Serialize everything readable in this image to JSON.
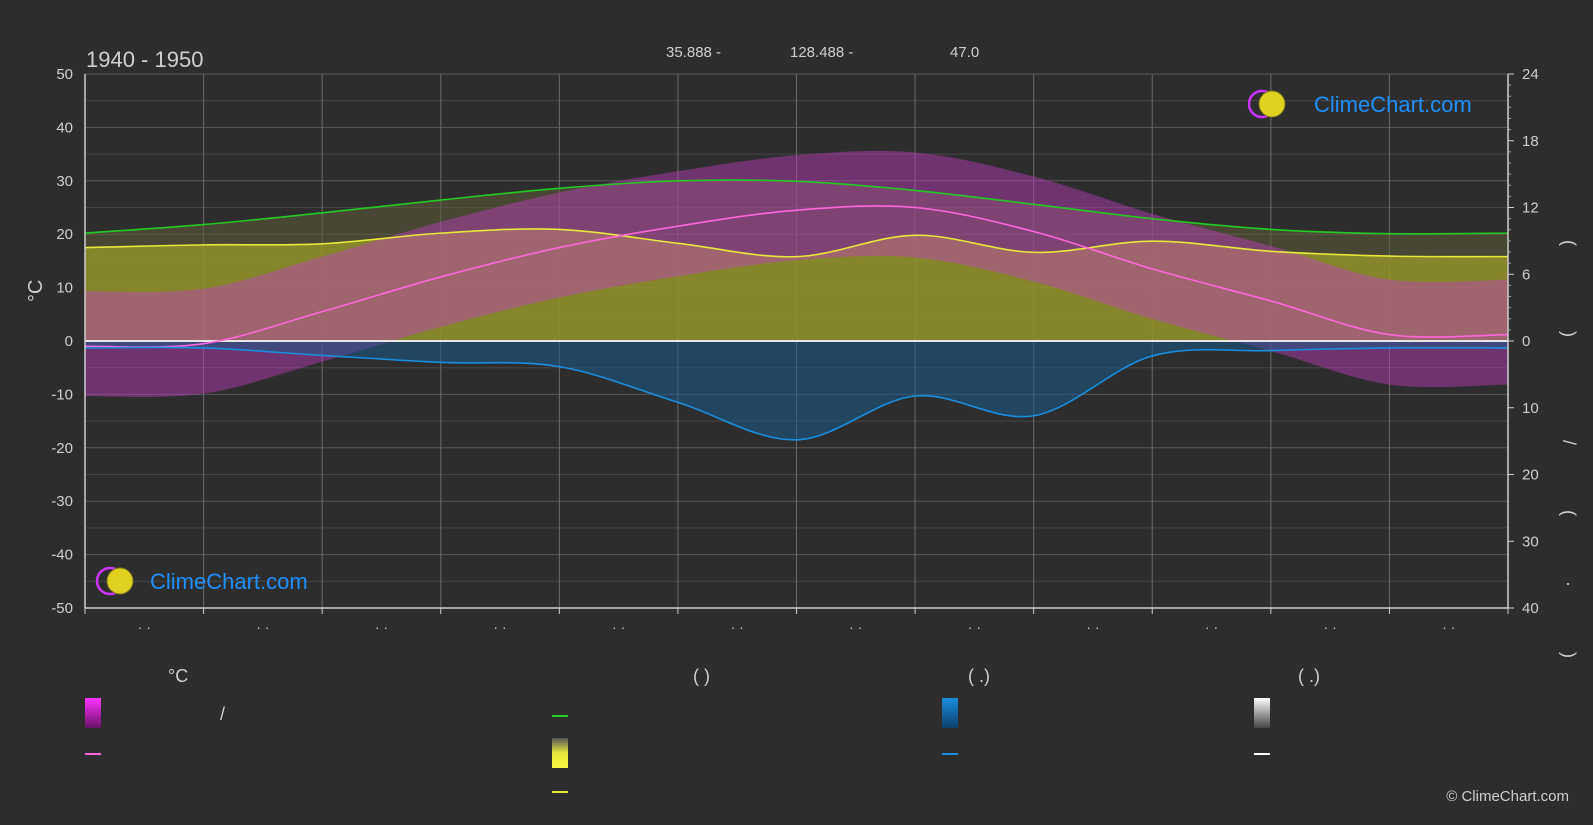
{
  "header": {
    "period": "1940 - 1950",
    "lat": "35.888 -",
    "lon": "128.488 -",
    "elev": "47.0"
  },
  "brand": {
    "text": "ClimeChart.com",
    "copyright": "© ClimeChart.com"
  },
  "axes": {
    "left_unit": "°C",
    "right_top_label": "( )",
    "right_bottom_label": "/ ( · )"
  },
  "legend": {
    "col1_header": "°C",
    "col2_header": "(           )",
    "col3_header": "(    .)",
    "col4_header": "(    .)",
    "col1_row1_slash": "/"
  },
  "colors": {
    "background": "#2d2d2d",
    "grid": "#555555",
    "daylight": "#22cc22",
    "sunshine": "#e8e83a",
    "mean_temp": "#ff66dd",
    "precip": "#1a8ee0",
    "temp_range": "#cc33cc",
    "brand_blue": "#1e90ff"
  },
  "chart_data": {
    "type": "line",
    "x_months": 12,
    "month_tick_labels": [
      "· ·",
      "· ·",
      "· ·",
      "· ·",
      "· ·",
      "· ·",
      "· ·",
      "· ·",
      "· ·",
      "· ·",
      "· ·",
      "· ·"
    ],
    "y_left": {
      "min": -50,
      "max": 50,
      "step": 10,
      "ticks": [
        50,
        40,
        30,
        20,
        10,
        0,
        -10,
        -20,
        -30,
        -40,
        -50
      ]
    },
    "y_right_top": {
      "ticks": [
        24,
        18,
        12,
        6,
        0
      ]
    },
    "y_right_bottom": {
      "ticks": [
        10,
        20,
        30,
        40
      ]
    },
    "series": [
      {
        "key": "daylight",
        "x": [
          0,
          1,
          2,
          3,
          4,
          5,
          6,
          7,
          8,
          9,
          10,
          11,
          12
        ],
        "values": [
          20.2,
          21.8,
          24.0,
          26.4,
          28.6,
          30.0,
          29.9,
          28.2,
          25.6,
          22.9,
          20.9,
          20.1,
          20.2
        ]
      },
      {
        "key": "sunshine",
        "x": [
          0,
          1,
          2,
          3,
          4,
          5,
          6,
          7,
          8,
          9,
          10,
          11,
          12
        ],
        "values": [
          17.5,
          18.0,
          18.2,
          20.2,
          20.9,
          18.3,
          15.8,
          19.8,
          16.6,
          18.7,
          16.8,
          15.9,
          15.8
        ]
      },
      {
        "key": "mean_temp",
        "x": [
          0,
          1,
          2,
          3,
          4,
          5,
          6,
          7,
          8,
          9,
          10,
          11,
          12
        ],
        "values": [
          -1.0,
          -0.5,
          5.5,
          12.0,
          17.5,
          21.5,
          24.5,
          25.0,
          20.5,
          13.5,
          7.5,
          1.2,
          1.2
        ]
      },
      {
        "key": "precip",
        "x": [
          0,
          1,
          2,
          3,
          4,
          5,
          6,
          7,
          8,
          9,
          10,
          11,
          12
        ],
        "values": [
          -1.3,
          -1.3,
          -2.7,
          -4.0,
          -4.8,
          -11.5,
          -18.5,
          -10.3,
          -14.0,
          -2.8,
          -1.8,
          -1.3,
          -1.3
        ]
      }
    ]
  }
}
